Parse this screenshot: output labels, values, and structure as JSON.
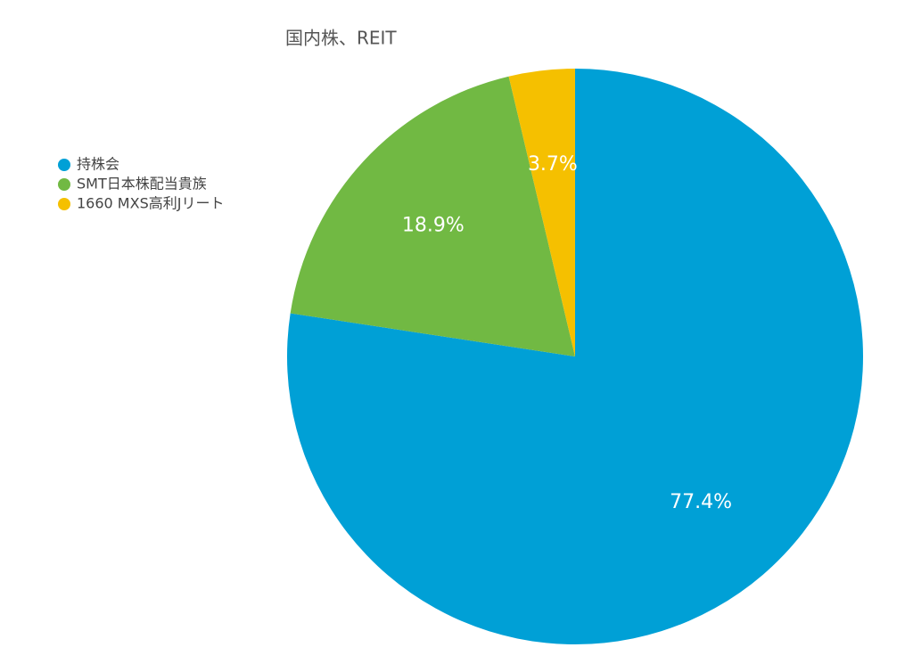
{
  "chart_data": {
    "type": "pie",
    "title": "国内株、REIT",
    "categories": [
      "持株会",
      "SMT日本株配当貴族",
      "1660 MXS高利Jリート"
    ],
    "values": [
      77.4,
      18.9,
      3.7
    ],
    "value_labels": [
      "77.4%",
      "18.9%",
      "3.7%"
    ],
    "colors": [
      "#00a0d6",
      "#71b943",
      "#f5c000"
    ],
    "legend": "upper-left"
  }
}
